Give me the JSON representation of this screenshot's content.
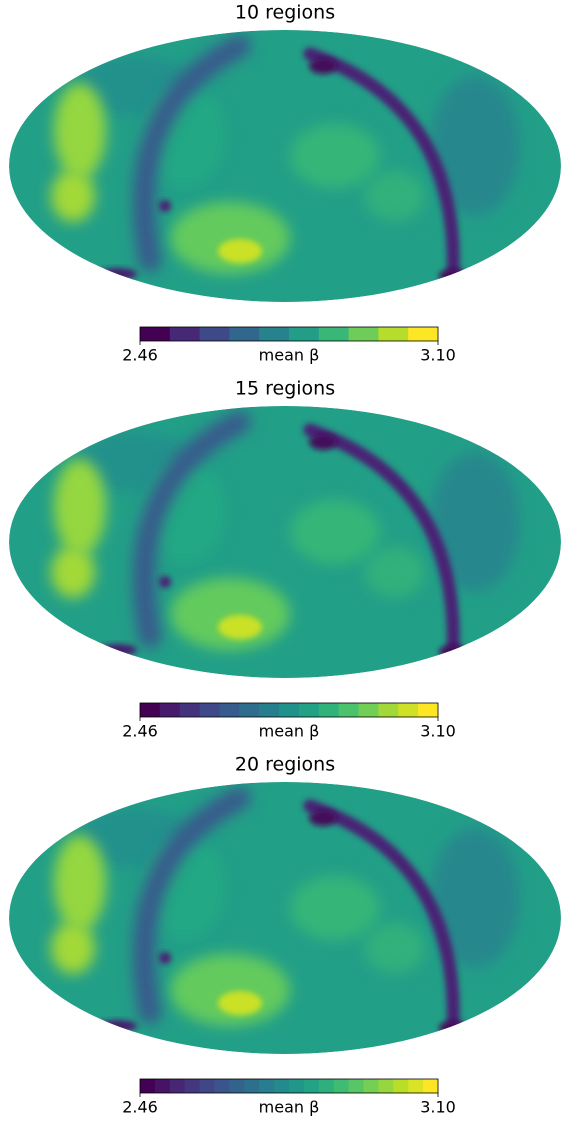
{
  "chart_data": [
    {
      "type": "mollweide",
      "title": "10 regions",
      "colormap": "viridis",
      "colorbar": {
        "label": "mean β",
        "lim": [
          2.46,
          3.1
        ],
        "ticks": [
          2.46,
          {
            "value": 3.1,
            "label": "3.10"
          }
        ],
        "levels": 10
      }
    },
    {
      "type": "mollweide",
      "title": "15 regions",
      "colormap": "viridis",
      "colorbar": {
        "label": "mean β",
        "lim": [
          2.46,
          3.1
        ],
        "ticks": [
          2.46,
          {
            "value": 3.1,
            "label": "3.10"
          }
        ],
        "levels": 15
      }
    },
    {
      "type": "mollweide",
      "title": "20 regions",
      "colormap": "viridis",
      "colorbar": {
        "label": "mean β",
        "lim": [
          2.46,
          3.1
        ],
        "ticks": [
          2.46,
          {
            "value": 3.1,
            "label": "3.10"
          }
        ],
        "levels": 20
      }
    }
  ]
}
